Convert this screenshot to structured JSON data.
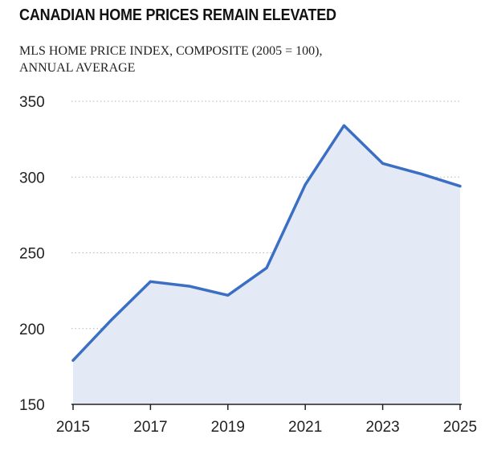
{
  "chart_data": {
    "type": "area",
    "title": "CANADIAN HOME PRICES REMAIN ELEVATED",
    "subtitle": "MLS HOME PRICE INDEX, COMPOSITE (2005 = 100),\nANNUAL AVERAGE",
    "xlabel": "",
    "ylabel": "",
    "x": [
      2015,
      2016,
      2017,
      2018,
      2019,
      2020,
      2021,
      2022,
      2023,
      2024,
      2025
    ],
    "values": [
      179,
      206,
      231,
      228,
      222,
      240,
      295,
      334,
      309,
      302,
      294
    ],
    "xticks": [
      "2015",
      "2017",
      "2019",
      "2021",
      "2023",
      "2025"
    ],
    "yticks": [
      "150",
      "200",
      "250",
      "300",
      "350"
    ],
    "xlim": [
      2015,
      2025
    ],
    "ylim": [
      150,
      350
    ],
    "grid": "horizontal dotted",
    "legend": "none",
    "colors": {
      "line": "#3A6FC4",
      "fill": "#E4E9F6",
      "grid": "#B5B5B5",
      "axis": "#222222"
    }
  }
}
